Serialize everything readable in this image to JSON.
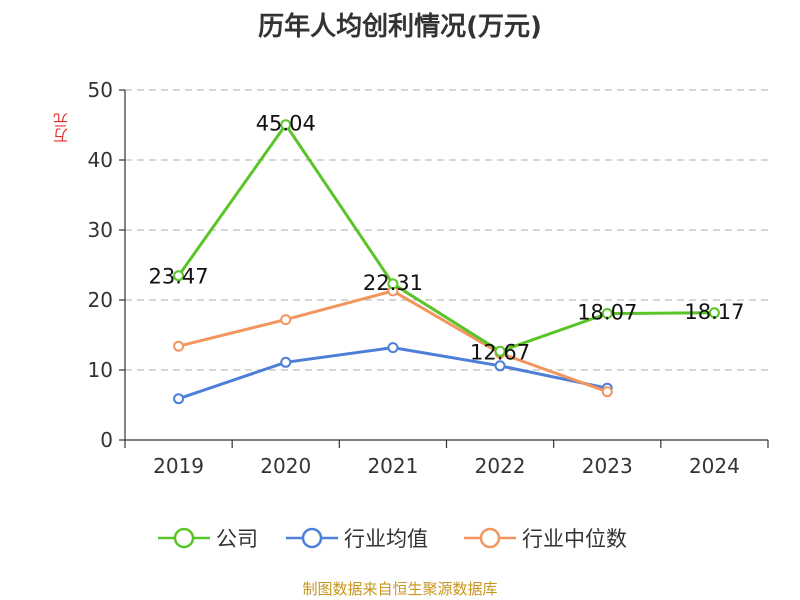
{
  "chart_data": {
    "type": "line",
    "title": "历年人均创利情况(万元)",
    "ylabel": "万元",
    "xlabel": "",
    "categories": [
      "2019",
      "2020",
      "2021",
      "2022",
      "2023",
      "2024"
    ],
    "ylim": [
      0,
      50
    ],
    "yticks": [
      0,
      10,
      20,
      30,
      40,
      50
    ],
    "grid": true,
    "legend_position": "bottom",
    "series": [
      {
        "name": "公司",
        "color": "#5ac528",
        "values": [
          23.47,
          45.04,
          22.31,
          12.67,
          18.07,
          18.17
        ],
        "labels": [
          "23.47",
          "45.04",
          "22.31",
          "12.67",
          "18.07",
          "18.17"
        ]
      },
      {
        "name": "行业均值",
        "color": "#4e7fd8",
        "values": [
          5.9,
          11.1,
          13.2,
          10.6,
          7.4,
          null
        ]
      },
      {
        "name": "行业中位数",
        "color": "#f2955e",
        "values": [
          13.4,
          17.2,
          21.3,
          12.4,
          6.9,
          null
        ]
      }
    ]
  },
  "footer": "制图数据来自恒生聚源数据库"
}
